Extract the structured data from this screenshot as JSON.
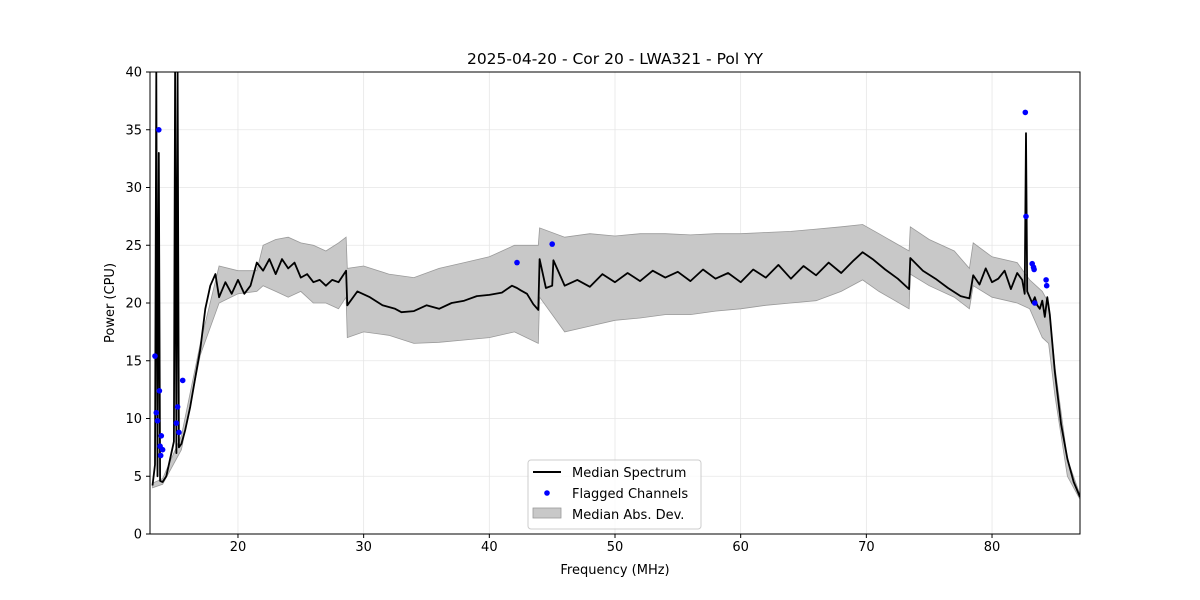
{
  "chart_data": {
    "type": "line",
    "title": "2025-04-20 - Cor 20 - LWA321 - Pol YY",
    "xlabel": "Frequency (MHz)",
    "ylabel": "Power (CPU)",
    "xlim": [
      13.0,
      87.0
    ],
    "ylim": [
      0,
      40
    ],
    "xticks": [
      20,
      30,
      40,
      50,
      60,
      70,
      80
    ],
    "yticks": [
      0,
      5,
      10,
      15,
      20,
      25,
      30,
      35,
      40
    ],
    "grid": true,
    "legend_position": "lower-center",
    "colors": {
      "median": "#000000",
      "flagged": "#0000ff",
      "mad_fill": "#c8c8c8",
      "mad_edge": "#9a9a9a"
    },
    "legend": [
      {
        "key": "median",
        "label": "Median Spectrum"
      },
      {
        "key": "flagged",
        "label": "Flagged Channels"
      },
      {
        "key": "mad",
        "label": "Median Abs. Dev."
      }
    ],
    "series": [
      {
        "name": "Median Spectrum",
        "x": [
          13.2,
          13.4,
          13.5,
          13.6,
          13.7,
          13.8,
          14.0,
          14.3,
          14.6,
          14.9,
          15.0,
          15.1,
          15.2,
          15.3,
          15.5,
          15.8,
          16.2,
          16.6,
          17.0,
          17.4,
          17.8,
          18.2,
          18.5,
          19.0,
          19.5,
          20.0,
          20.5,
          21.0,
          21.5,
          22.0,
          22.5,
          23.0,
          23.5,
          24.0,
          24.5,
          25.0,
          25.5,
          26.0,
          26.5,
          27.0,
          27.5,
          28.0,
          28.6,
          28.7,
          29.5,
          30.5,
          31.5,
          32.5,
          33.0,
          34.0,
          35.0,
          36.0,
          37.0,
          38.0,
          39.0,
          40.0,
          41.0,
          41.8,
          42.2,
          42.5,
          43.0,
          43.5,
          43.9,
          44.0,
          44.5,
          45.0,
          45.1,
          46.0,
          47.0,
          48.0,
          49.0,
          50.0,
          51.0,
          52.0,
          53.0,
          54.0,
          55.0,
          56.0,
          57.0,
          58.0,
          59.0,
          60.0,
          61.0,
          62.0,
          63.0,
          64.0,
          65.0,
          66.0,
          67.0,
          68.0,
          69.0,
          69.7,
          70.5,
          71.5,
          72.5,
          73.4,
          73.5,
          74.5,
          75.5,
          76.5,
          77.5,
          78.2,
          78.5,
          79.0,
          79.5,
          80.0,
          80.5,
          81.0,
          81.5,
          82.0,
          82.4,
          82.6,
          82.7,
          82.8,
          83.0,
          83.2,
          83.4,
          83.6,
          83.8,
          84.0,
          84.2,
          84.4,
          84.6,
          85.0,
          85.5,
          86.0,
          86.5,
          87.0
        ],
        "y": [
          4.2,
          6.0,
          40.0,
          5.0,
          33.0,
          4.6,
          4.5,
          5.0,
          6.5,
          8.0,
          40.0,
          7.0,
          40.0,
          7.5,
          7.8,
          9.0,
          11.0,
          13.5,
          16.0,
          19.5,
          21.5,
          22.5,
          20.5,
          21.8,
          20.8,
          22.0,
          20.8,
          21.5,
          23.5,
          22.8,
          23.8,
          22.5,
          23.8,
          23.0,
          23.5,
          22.2,
          22.5,
          21.8,
          22.0,
          21.5,
          22.0,
          21.8,
          22.8,
          19.8,
          21.0,
          20.5,
          19.8,
          19.5,
          19.2,
          19.3,
          19.8,
          19.5,
          20.0,
          20.2,
          20.6,
          20.7,
          20.9,
          21.5,
          21.3,
          21.1,
          20.8,
          19.9,
          19.4,
          23.8,
          21.3,
          21.5,
          23.7,
          21.5,
          22.0,
          21.4,
          22.5,
          21.8,
          22.6,
          21.9,
          22.8,
          22.2,
          22.7,
          21.9,
          22.9,
          22.1,
          22.6,
          21.8,
          22.9,
          22.2,
          23.3,
          22.1,
          23.2,
          22.4,
          23.5,
          22.6,
          23.7,
          24.4,
          23.8,
          22.9,
          22.1,
          21.2,
          23.9,
          22.8,
          22.1,
          21.3,
          20.6,
          20.4,
          22.4,
          21.6,
          23.0,
          21.8,
          22.1,
          22.8,
          21.2,
          22.6,
          22.0,
          20.8,
          34.7,
          21.0,
          20.5,
          20.0,
          20.5,
          19.8,
          19.5,
          20.2,
          18.8,
          20.5,
          19.0,
          14.0,
          9.5,
          6.5,
          4.5,
          3.2
        ]
      }
    ],
    "mad_band": {
      "name": "Median Abs. Dev.",
      "x": [
        13.2,
        14.0,
        15.5,
        17.0,
        18.5,
        20.0,
        21.5,
        22.0,
        23.0,
        24.0,
        25.0,
        26.0,
        27.0,
        28.0,
        28.6,
        28.7,
        30.0,
        32.0,
        34.0,
        36.0,
        38.0,
        40.0,
        42.0,
        43.9,
        44.0,
        46.0,
        48.0,
        50.0,
        52.0,
        54.0,
        56.0,
        58.0,
        60.0,
        62.0,
        64.0,
        66.0,
        68.0,
        69.7,
        71.0,
        73.4,
        73.5,
        75.0,
        77.0,
        78.2,
        78.5,
        80.0,
        82.0,
        83.0,
        84.0,
        84.5,
        85.0,
        86.0,
        87.0
      ],
      "lower": [
        4.0,
        4.3,
        7.3,
        15.5,
        20.0,
        20.8,
        21.0,
        21.5,
        21.0,
        20.5,
        21.0,
        20.0,
        20.0,
        19.5,
        20.5,
        17.0,
        17.5,
        17.2,
        16.5,
        16.6,
        16.8,
        17.0,
        17.5,
        16.5,
        20.5,
        17.5,
        18.0,
        18.5,
        18.7,
        19.0,
        19.0,
        19.3,
        19.5,
        19.8,
        20.0,
        20.2,
        21.0,
        22.0,
        21.0,
        19.5,
        22.5,
        21.5,
        20.5,
        19.5,
        21.5,
        20.5,
        20.0,
        19.5,
        17.0,
        16.5,
        12.0,
        5.0,
        3.0
      ],
      "upper": [
        4.4,
        4.8,
        8.5,
        16.5,
        23.2,
        22.8,
        22.8,
        25.0,
        25.5,
        25.7,
        25.2,
        25.0,
        24.5,
        25.2,
        25.7,
        23.0,
        23.2,
        22.5,
        22.2,
        23.0,
        23.5,
        24.0,
        25.0,
        25.0,
        26.5,
        25.7,
        26.0,
        25.8,
        26.0,
        26.0,
        25.9,
        26.0,
        26.0,
        26.1,
        26.2,
        26.4,
        26.6,
        26.8,
        26.0,
        24.5,
        26.6,
        25.5,
        24.5,
        23.0,
        25.2,
        24.0,
        23.5,
        22.0,
        21.0,
        20.0,
        14.5,
        6.5,
        3.4
      ]
    },
    "flagged_channels": {
      "name": "Flagged Channels",
      "x": [
        13.4,
        13.5,
        13.6,
        13.7,
        13.75,
        13.8,
        13.85,
        13.9,
        14.0,
        15.1,
        15.2,
        15.3,
        15.6,
        42.2,
        45.0,
        82.65,
        82.7,
        83.2,
        83.3,
        83.35,
        83.4,
        84.3,
        84.35
      ],
      "y": [
        15.4,
        10.5,
        9.8,
        35.0,
        12.4,
        7.6,
        6.8,
        8.5,
        7.3,
        9.6,
        11.0,
        8.8,
        13.3,
        23.5,
        25.1,
        36.5,
        27.5,
        23.4,
        23.1,
        22.9,
        20.0,
        22.0,
        21.5
      ]
    }
  }
}
